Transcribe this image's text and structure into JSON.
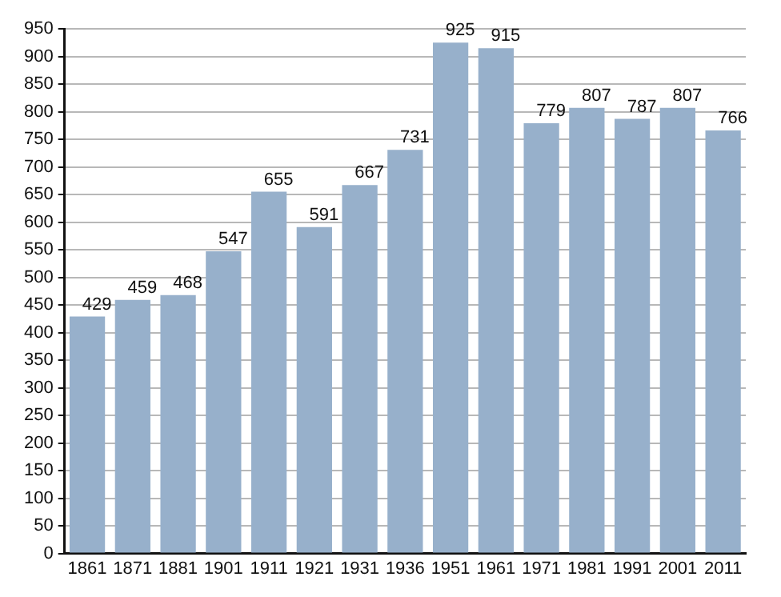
{
  "chart_data": {
    "type": "bar",
    "categories": [
      "1861",
      "1871",
      "1881",
      "1901",
      "1911",
      "1921",
      "1931",
      "1936",
      "1951",
      "1961",
      "1971",
      "1981",
      "1991",
      "2001",
      "2011"
    ],
    "values": [
      429,
      459,
      468,
      547,
      655,
      591,
      667,
      731,
      925,
      915,
      779,
      807,
      787,
      807,
      766
    ],
    "color": "#97b0cb",
    "ylim": [
      0,
      950
    ],
    "yticks": [
      0,
      50,
      100,
      150,
      200,
      250,
      300,
      350,
      400,
      450,
      500,
      550,
      600,
      650,
      700,
      750,
      800,
      850,
      900,
      950
    ],
    "grid": "y",
    "data_labels": true,
    "legend": false
  }
}
